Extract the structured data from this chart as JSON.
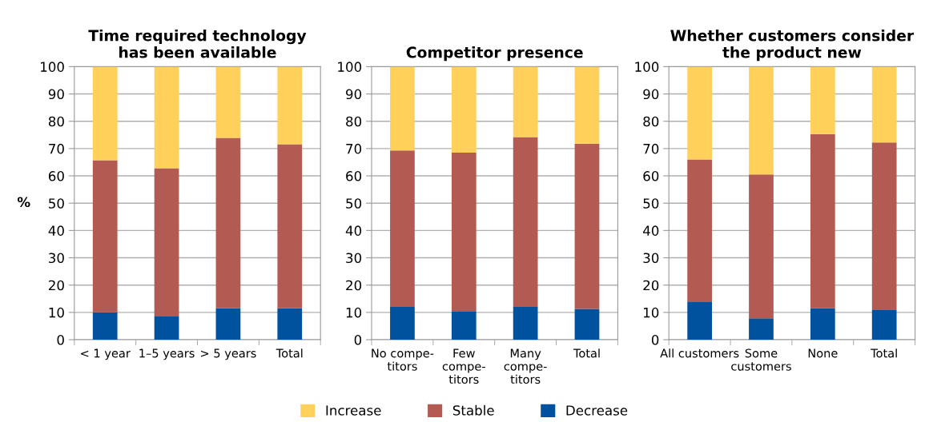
{
  "chart_data": [
    {
      "type": "bar",
      "stacked": true,
      "title": "Time required technology\nhas been available",
      "ylabel": "%",
      "categories": [
        "< 1 year",
        "1–5 years",
        "> 5 years",
        "Total"
      ],
      "ylim": [
        0,
        100
      ],
      "yticks": [
        0,
        10,
        20,
        30,
        40,
        50,
        60,
        70,
        80,
        90,
        100
      ],
      "grid": "y",
      "legend": "bottom",
      "series": [
        {
          "name": "Decrease",
          "color": "#00519e",
          "values": [
            10,
            8.5,
            11.5,
            11.5
          ]
        },
        {
          "name": "Stable",
          "color": "#b35b52",
          "values": [
            55.7,
            54.3,
            62.4,
            60.1
          ]
        },
        {
          "name": "Increase",
          "color": "#ffd15a",
          "values": [
            34.3,
            37.2,
            26.1,
            28.4
          ]
        }
      ]
    },
    {
      "type": "bar",
      "stacked": true,
      "title": "Competitor presence",
      "categories": [
        "No compe-\ntitors",
        "Few\ncompe-\ntitors",
        "Many\ncompe-\ntitors",
        "Total"
      ],
      "ylim": [
        0,
        100
      ],
      "yticks": [
        0,
        10,
        20,
        30,
        40,
        50,
        60,
        70,
        80,
        90,
        100
      ],
      "grid": "y",
      "series": [
        {
          "color": "#00519e",
          "values": [
            12,
            10.5,
            12,
            11.3
          ]
        },
        {
          "color": "#b35b52",
          "values": [
            57.3,
            58,
            62.2,
            60.5
          ]
        },
        {
          "color": "#ffd15a",
          "values": [
            30.7,
            31.5,
            25.8,
            28.2
          ]
        }
      ]
    },
    {
      "type": "bar",
      "stacked": true,
      "title": "Whether customers consider\nthe product new",
      "categories": [
        "All customers",
        "Some\ncustomers",
        "None",
        "Total"
      ],
      "ylim": [
        0,
        100
      ],
      "yticks": [
        0,
        10,
        20,
        30,
        40,
        50,
        60,
        70,
        80,
        90,
        100
      ],
      "grid": "y",
      "series": [
        {
          "color": "#00519e",
          "values": [
            14,
            7.8,
            11.6,
            10.8
          ]
        },
        {
          "color": "#b35b52",
          "values": [
            52,
            52.7,
            63.7,
            61.4
          ]
        },
        {
          "color": "#ffd15a",
          "values": [
            34,
            39.5,
            24.7,
            27.8
          ]
        }
      ]
    }
  ]
}
